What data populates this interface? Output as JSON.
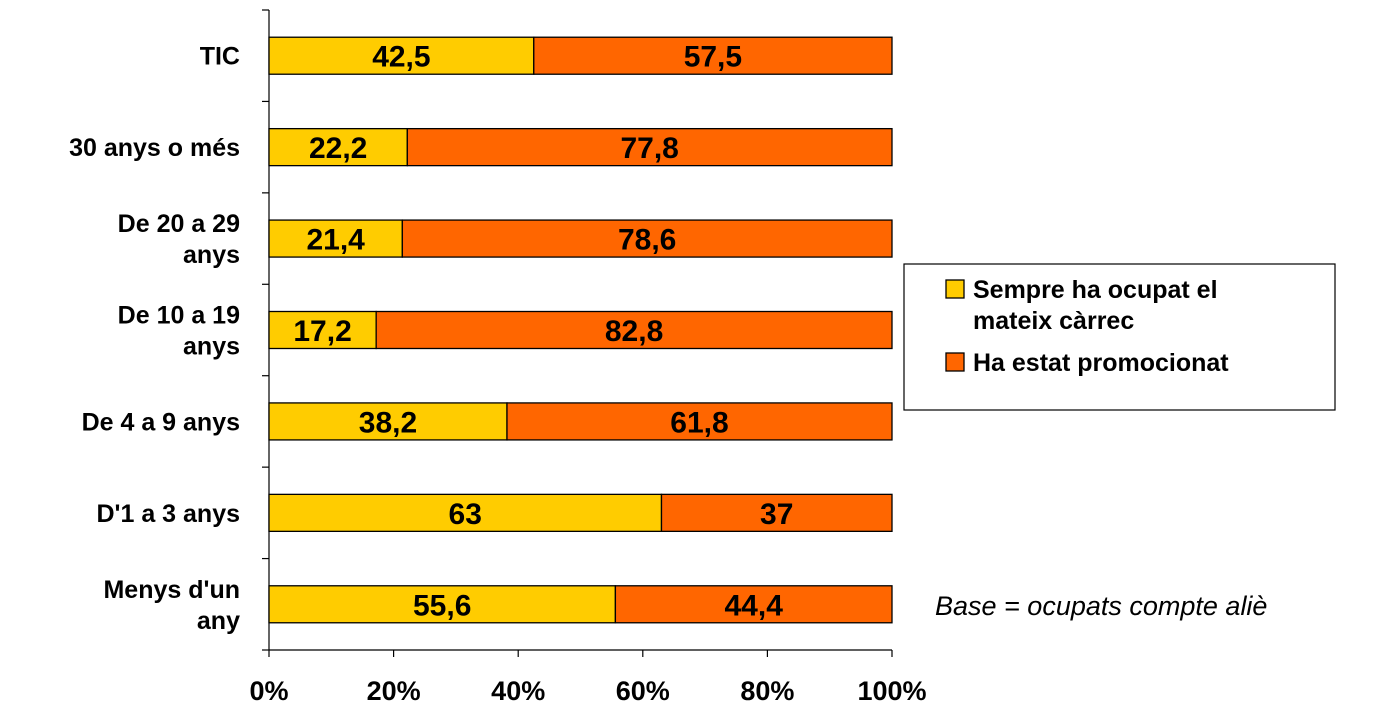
{
  "chart_data": {
    "type": "bar",
    "orientation": "horizontal",
    "stacked": "percent",
    "categories": [
      "TIC",
      "30 anys o més",
      "De 20 a 29 anys",
      "De 10 a 19 anys",
      "De 4 a 9 anys",
      "D'1 a 3 anys",
      "Menys d'un any"
    ],
    "category_lines": [
      [
        "TIC"
      ],
      [
        "30 anys o més"
      ],
      [
        "De 20 a 29",
        "anys"
      ],
      [
        "De 10 a 19",
        "anys"
      ],
      [
        "De 4 a 9 anys"
      ],
      [
        "D'1 a 3 anys"
      ],
      [
        "Menys d'un",
        "any"
      ]
    ],
    "series": [
      {
        "name": "Sempre ha ocupat el mateix càrrec",
        "legend_lines": [
          "Sempre ha ocupat el",
          "mateix càrrec"
        ],
        "color": "#FFCC00",
        "values": [
          42.5,
          22.2,
          21.4,
          17.2,
          38.2,
          63,
          55.6
        ],
        "labels": [
          "42,5",
          "22,2",
          "21,4",
          "17,2",
          "38,2",
          "63",
          "55,6"
        ]
      },
      {
        "name": "Ha estat promocionat",
        "legend_lines": [
          "Ha estat promocionat"
        ],
        "color": "#FF6600",
        "values": [
          57.5,
          77.8,
          78.6,
          82.8,
          61.8,
          37,
          44.4
        ],
        "labels": [
          "57,5",
          "77,8",
          "78,6",
          "82,8",
          "61,8",
          "37",
          "44,4"
        ]
      }
    ],
    "xticks": [
      "0%",
      "20%",
      "40%",
      "60%",
      "80%",
      "100%"
    ],
    "xlim": [
      0,
      100
    ],
    "grid": false,
    "legend_position": "right",
    "note": "Base = ocupats compte aliè"
  }
}
